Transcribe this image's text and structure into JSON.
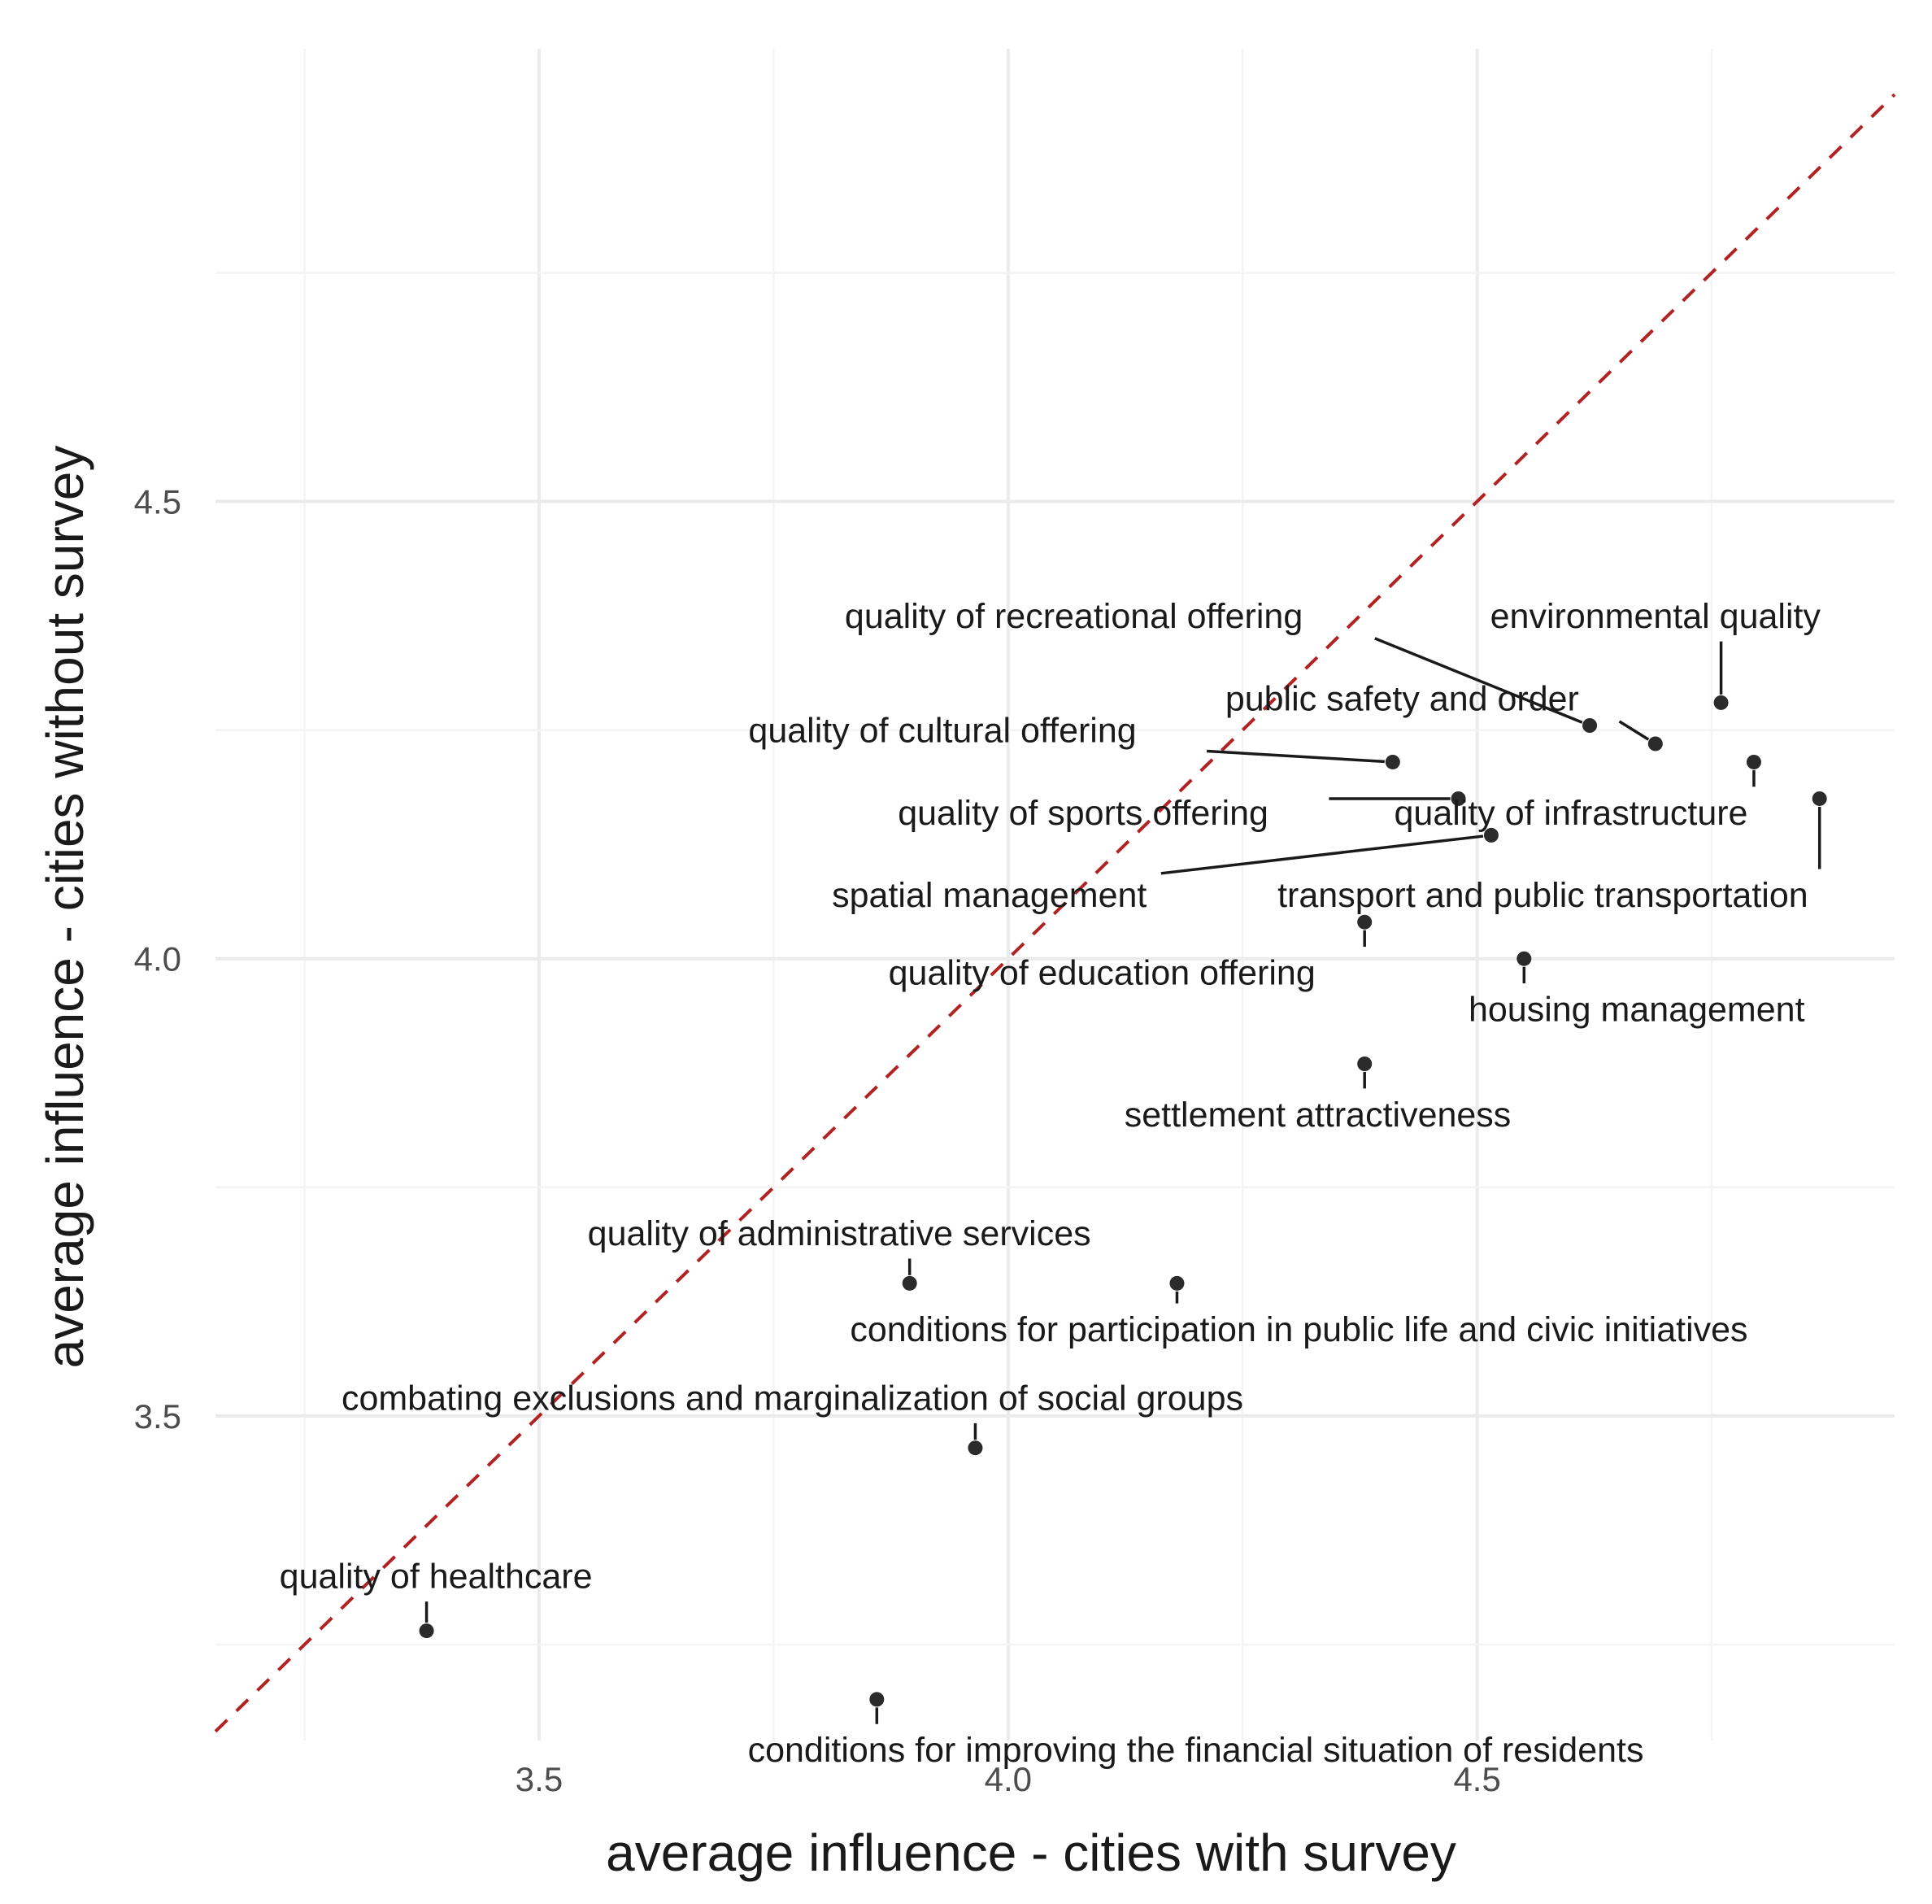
{
  "chart_data": {
    "type": "scatter",
    "title": "",
    "xlabel": "average influence - cities with survey",
    "ylabel": "average influence - cities without survey",
    "xlim": [
      3.155,
      4.945
    ],
    "ylim": [
      3.145,
      4.995
    ],
    "x_ticks": [
      {
        "value": 3.5,
        "label": "3.5"
      },
      {
        "value": 4.0,
        "label": "4.0"
      },
      {
        "value": 4.5,
        "label": "4.5"
      }
    ],
    "y_ticks": [
      {
        "value": 3.5,
        "label": "3.5"
      },
      {
        "value": 4.0,
        "label": "4.0"
      },
      {
        "value": 4.5,
        "label": "4.5"
      }
    ],
    "reference_line": {
      "type": "identity",
      "style": "dashed",
      "color": "#b22222"
    },
    "points": [
      {
        "label": "quality of recreational offering",
        "x": 4.62,
        "y": 4.255,
        "label_x": 4.07,
        "label_y": 4.375,
        "anchor": "middle"
      },
      {
        "label": "environmental quality",
        "x": 4.76,
        "y": 4.28,
        "label_x": 4.69,
        "label_y": 4.375,
        "anchor": "middle"
      },
      {
        "label": "public safety and order",
        "x": 4.69,
        "y": 4.235,
        "label_x": 4.42,
        "label_y": 4.285,
        "anchor": "middle"
      },
      {
        "label": "quality of cultural offering",
        "x": 4.41,
        "y": 4.215,
        "label_x": 3.93,
        "label_y": 4.25,
        "anchor": "middle"
      },
      {
        "label": "quality of sports offering",
        "x": 4.48,
        "y": 4.175,
        "label_x": 4.08,
        "label_y": 4.16,
        "anchor": "middle"
      },
      {
        "label": "quality of infrastructure",
        "x": 4.795,
        "y": 4.215,
        "label_x": 4.6,
        "label_y": 4.16,
        "anchor": "middle"
      },
      {
        "label": "transport and public transportation",
        "x": 4.865,
        "y": 4.175,
        "label_x": 4.57,
        "label_y": 4.07,
        "anchor": "middle"
      },
      {
        "label": "spatial management",
        "x": 4.515,
        "y": 4.135,
        "label_x": 3.98,
        "label_y": 4.07,
        "anchor": "middle"
      },
      {
        "label": "quality of education offering",
        "x": 4.38,
        "y": 4.04,
        "label_x": 4.1,
        "label_y": 3.985,
        "anchor": "middle"
      },
      {
        "label": "housing management",
        "x": 4.55,
        "y": 4.0,
        "label_x": 4.67,
        "label_y": 3.945,
        "anchor": "middle"
      },
      {
        "label": "settlement attractiveness",
        "x": 4.38,
        "y": 3.885,
        "label_x": 4.33,
        "label_y": 3.83,
        "anchor": "middle"
      },
      {
        "label": "quality of administrative services",
        "x": 3.895,
        "y": 3.645,
        "label_x": 3.82,
        "label_y": 3.7,
        "anchor": "middle"
      },
      {
        "label": "conditions for participation in public life and civic initiatives",
        "x": 4.18,
        "y": 3.645,
        "label_x": 4.31,
        "label_y": 3.595,
        "anchor": "middle"
      },
      {
        "label": "combating exclusions and marginalization of social groups",
        "x": 3.965,
        "y": 3.465,
        "label_x": 3.77,
        "label_y": 3.52,
        "anchor": "middle"
      },
      {
        "label": "quality of healthcare",
        "x": 3.38,
        "y": 3.265,
        "label_x": 3.39,
        "label_y": 3.325,
        "anchor": "middle"
      },
      {
        "label": "conditions for improving the financial situation of residents",
        "x": 3.86,
        "y": 3.19,
        "label_x": 4.2,
        "label_y": 3.135,
        "anchor": "middle"
      }
    ]
  }
}
